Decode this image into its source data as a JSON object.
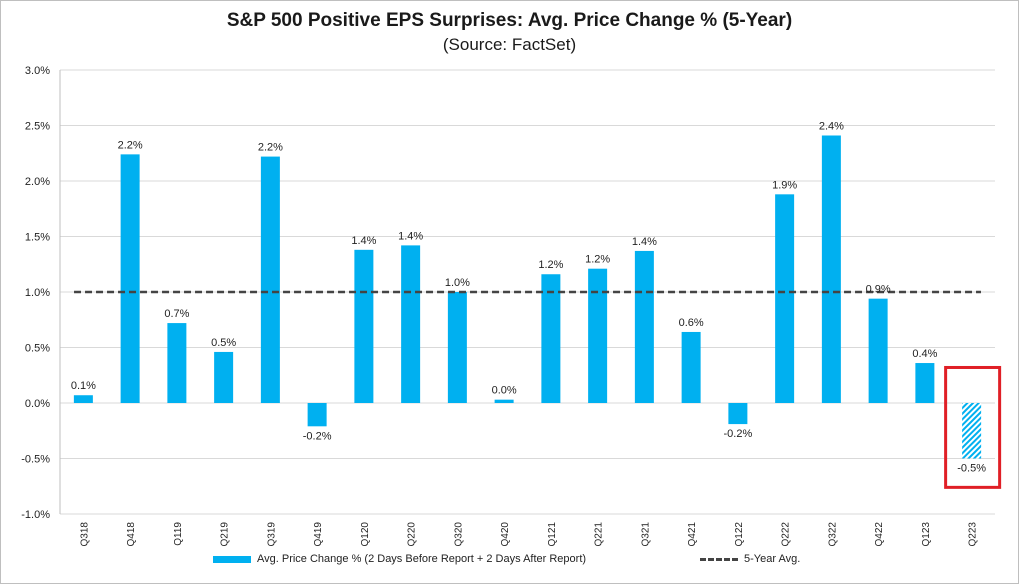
{
  "chart_data": {
    "type": "bar",
    "title": "S&P 500 Positive EPS Surprises: Avg. Price Change % (5-Year)",
    "subtitle": "(Source: FactSet)",
    "categories": [
      "Q318",
      "Q418",
      "Q119",
      "Q219",
      "Q319",
      "Q419",
      "Q120",
      "Q220",
      "Q320",
      "Q420",
      "Q121",
      "Q221",
      "Q321",
      "Q421",
      "Q122",
      "Q222",
      "Q322",
      "Q422",
      "Q123",
      "Q223"
    ],
    "series": [
      {
        "name": "Avg. Price Change % (2 Days Before Report + 2 Days After Report)",
        "values": [
          0.07,
          2.24,
          0.72,
          0.46,
          2.22,
          -0.21,
          1.38,
          1.42,
          1.0,
          0.03,
          1.16,
          1.21,
          1.37,
          0.64,
          -0.19,
          1.88,
          2.41,
          0.94,
          0.36,
          -0.5
        ],
        "labels": [
          "0.1%",
          "2.2%",
          "0.7%",
          "0.5%",
          "2.2%",
          "-0.2%",
          "1.4%",
          "1.4%",
          "1.0%",
          "0.0%",
          "1.2%",
          "1.2%",
          "1.4%",
          "0.6%",
          "-0.2%",
          "1.9%",
          "2.4%",
          "0.9%",
          "0.4%",
          "-0.5%"
        ],
        "color": "#00b0f0"
      }
    ],
    "reference_line": {
      "name": "5-Year Avg.",
      "value": 1.0,
      "color": "#444444"
    },
    "highlighted_category": "Q223",
    "highlight_color": "#e01f26",
    "ylim": [
      -1.0,
      3.0
    ],
    "yticks": [
      -1.0,
      -0.5,
      0.0,
      0.5,
      1.0,
      1.5,
      2.0,
      2.5,
      3.0
    ],
    "ytick_labels": [
      "-1.0%",
      "-0.5%",
      "0.0%",
      "0.5%",
      "1.0%",
      "1.5%",
      "2.0%",
      "2.5%",
      "3.0%"
    ],
    "grid": true,
    "legend_position": "bottom"
  }
}
